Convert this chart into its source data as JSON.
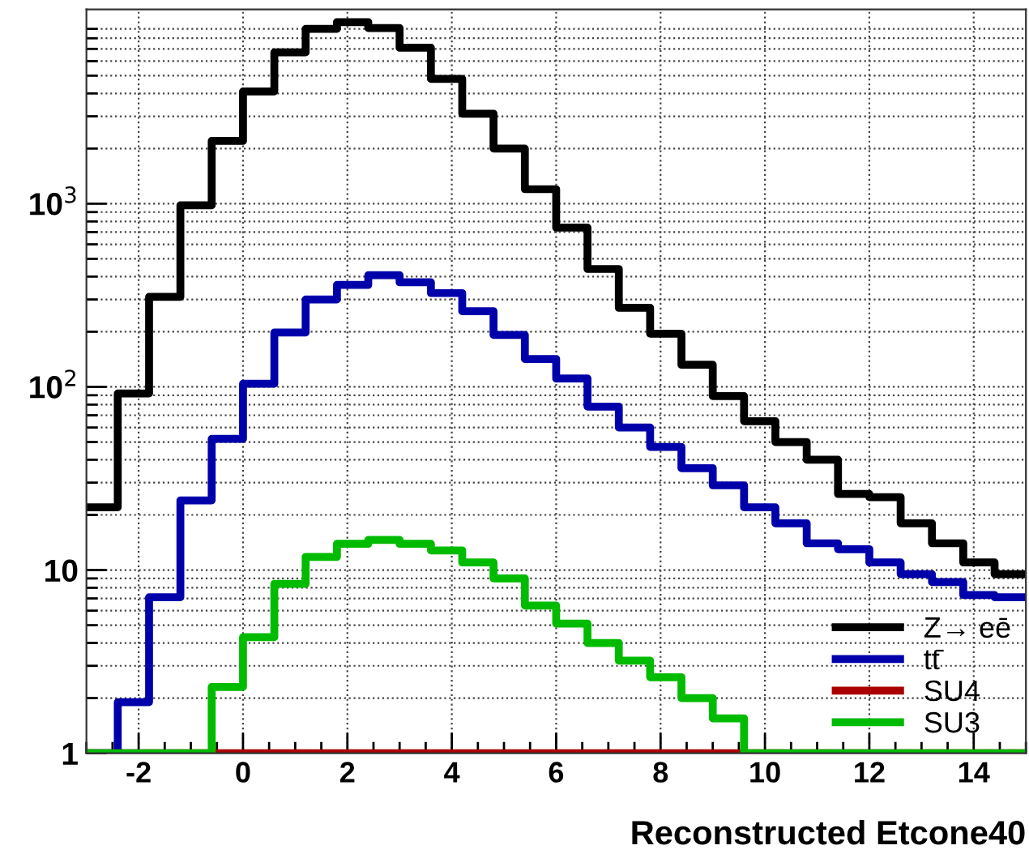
{
  "chart_data": {
    "type": "histogram",
    "xlabel": "Reconstructed Etcone40",
    "bins": [
      -3,
      -2.4,
      -1.8,
      -1.2,
      -0.6,
      0,
      0.6,
      1.2,
      1.8,
      2.4,
      3,
      3.6,
      4.2,
      4.8,
      5.4,
      6,
      6.6,
      7.2,
      7.8,
      8.4,
      9,
      9.6,
      10.2,
      10.8,
      11.4,
      12,
      12.6,
      13.2,
      13.8,
      14.4,
      15
    ],
    "series": [
      {
        "name": "Z→ eē",
        "color": "#000000",
        "values": [
          22,
          92,
          310,
          980,
          2200,
          4100,
          6700,
          9000,
          9800,
          9100,
          7100,
          4800,
          3100,
          2000,
          1200,
          740,
          440,
          270,
          195,
          132,
          89,
          65,
          50,
          40,
          26,
          25,
          18,
          14,
          11,
          9.5
        ]
      },
      {
        "name": "tt̄",
        "color": "#0000aa",
        "values": [
          1,
          1.9,
          7.1,
          24,
          52,
          104,
          198,
          300,
          360,
          407,
          372,
          325,
          259,
          192,
          142,
          111,
          78,
          60,
          47,
          36,
          29,
          22,
          18,
          14,
          13,
          11,
          9.5,
          8.6,
          7.3,
          7.1
        ]
      },
      {
        "name": "SU4",
        "color": "#aa0000",
        "values": [
          1,
          1,
          1,
          1,
          1,
          1,
          1,
          1,
          1,
          1,
          1,
          1,
          1,
          1,
          1,
          1,
          1,
          1,
          1,
          1,
          1,
          1,
          1,
          1,
          1,
          1,
          1,
          1,
          1,
          1
        ]
      },
      {
        "name": "SU3",
        "color": "#00bb00",
        "values": [
          1,
          1,
          1,
          1,
          2.3,
          4.3,
          8.4,
          11.8,
          13.9,
          14.6,
          13.9,
          12.8,
          11,
          9,
          6.4,
          5.1,
          4,
          3.2,
          2.6,
          2,
          1.55,
          1,
          1,
          1,
          1,
          1,
          1,
          1,
          1,
          1
        ]
      }
    ],
    "log": "y",
    "xlim": [
      -3,
      15
    ],
    "xticks": [
      -2,
      0,
      2,
      4,
      6,
      8,
      10,
      12,
      14
    ],
    "ylim": [
      1,
      11500
    ],
    "yticks": [
      1,
      10,
      {
        "value": 100,
        "label": "10$^{2}$"
      },
      {
        "value": 1000,
        "label": "10$^{3}$"
      }
    ],
    "grid": true,
    "legend": "bottom right",
    "line_style": "solid"
  }
}
